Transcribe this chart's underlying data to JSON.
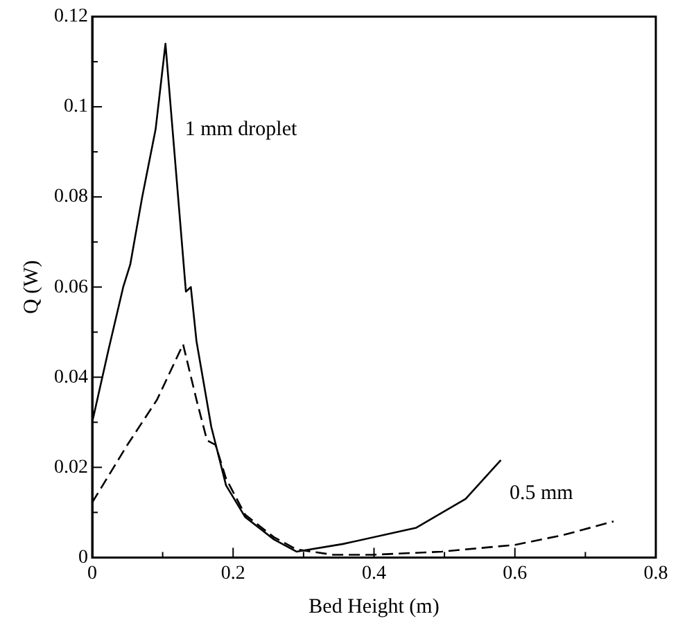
{
  "chart_data": {
    "type": "line",
    "xlabel": "Bed Height (m)",
    "ylabel": "Q (W)",
    "xlim": [
      0,
      0.8
    ],
    "ylim": [
      0,
      0.12
    ],
    "xticks": [
      0,
      {
        "value": 0.1,
        "label": null
      },
      0.2,
      {
        "value": 0.3,
        "label": null
      },
      0.4,
      {
        "value": 0.5,
        "label": null
      },
      0.6,
      {
        "value": 0.7,
        "label": null
      },
      0.8
    ],
    "yticks": [
      0,
      {
        "value": 0.01,
        "label": null
      },
      0.02,
      {
        "value": 0.03,
        "label": null
      },
      0.04,
      {
        "value": 0.05,
        "label": null
      },
      0.06,
      {
        "value": 0.07,
        "label": null
      },
      0.08,
      {
        "value": 0.09,
        "label": null
      },
      0.1,
      {
        "value": 0.11,
        "label": null
      },
      0.12
    ],
    "grid": false,
    "legend": false,
    "marker": "none",
    "series": [
      {
        "name": "1 mm droplet",
        "color": "#000000",
        "line_style": "solid",
        "x": [
          0,
          0.023,
          0.044,
          0.054,
          0.071,
          0.09,
          0.104,
          0.133,
          0.14,
          0.148,
          0.169,
          0.19,
          0.217,
          0.258,
          0.29,
          0.356,
          0.46,
          0.53,
          0.58
        ],
        "values": [
          0.03,
          0.046,
          0.06,
          0.065,
          0.08,
          0.095,
          0.114,
          0.059,
          0.06,
          0.048,
          0.029,
          0.016,
          0.009,
          0.004,
          0.0013,
          0.003,
          0.0066,
          0.013,
          0.0216
        ]
      },
      {
        "name": "0.5 mm",
        "color": "#000000",
        "line_style": "dashed",
        "x": [
          0,
          0.05,
          0.092,
          0.129,
          0.148,
          0.163,
          0.175,
          0.19,
          0.217,
          0.258,
          0.29,
          0.342,
          0.398,
          0.496,
          0.6,
          0.669,
          0.74
        ],
        "values": [
          0.0122,
          0.025,
          0.035,
          0.0473,
          0.035,
          0.026,
          0.025,
          0.0175,
          0.0095,
          0.0045,
          0.0018,
          0.0006,
          0.0006,
          0.0013,
          0.0028,
          0.005,
          0.008
        ]
      }
    ]
  }
}
